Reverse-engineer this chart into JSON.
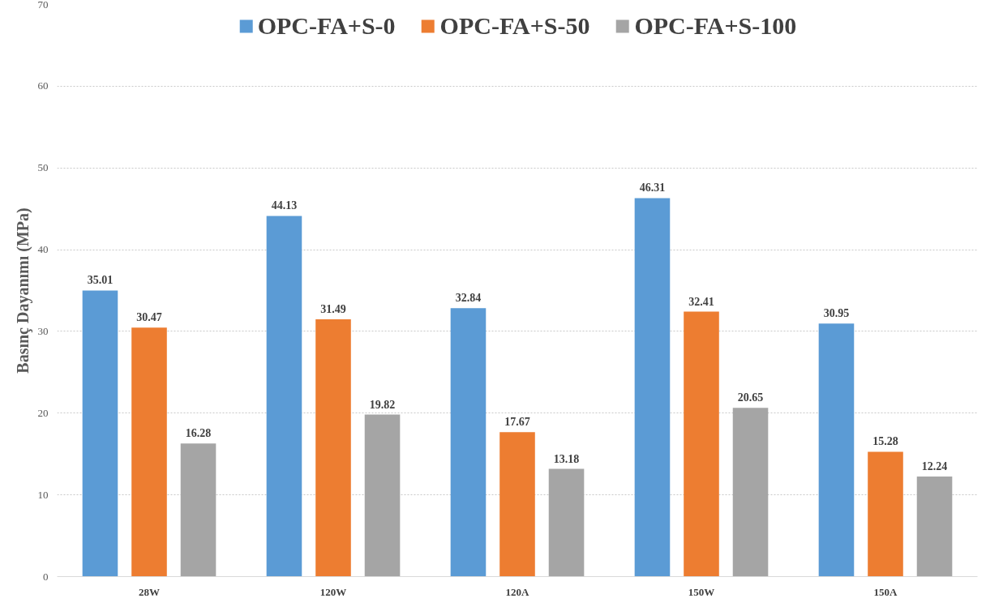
{
  "chart_data": {
    "type": "bar",
    "ylabel": "Basınç Dayanımı (MPa)",
    "categories": [
      "28W",
      "120W",
      "120A",
      "150W",
      "150A"
    ],
    "series": [
      {
        "name": "OPC-FA+S-0",
        "color": "#5b9bd5",
        "values": [
          35.01,
          44.13,
          32.84,
          46.31,
          30.95
        ]
      },
      {
        "name": "OPC-FA+S-50",
        "color": "#ed7d31",
        "values": [
          30.47,
          31.49,
          17.67,
          32.41,
          15.28
        ]
      },
      {
        "name": "OPC-FA+S-100",
        "color": "#a5a5a5",
        "values": [
          16.28,
          19.82,
          13.18,
          20.65,
          12.24
        ]
      }
    ],
    "ylim": [
      0,
      70
    ],
    "yticks": [
      0,
      10,
      20,
      30,
      40,
      50,
      60,
      70
    ],
    "grid": "y",
    "legend": "top",
    "data_labels": true
  }
}
